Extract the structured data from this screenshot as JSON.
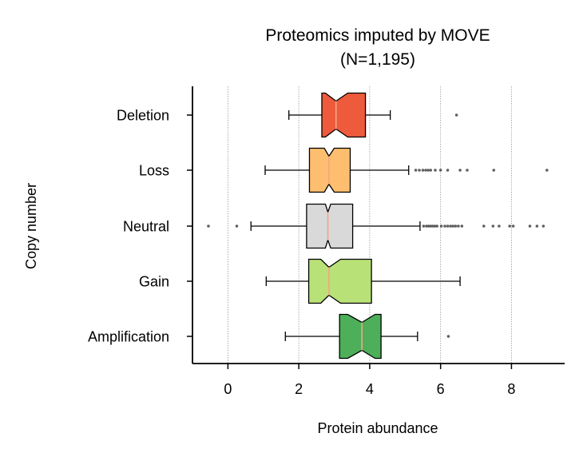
{
  "chart_data": {
    "type": "boxplot",
    "orientation": "horizontal",
    "notched": true,
    "title": [
      "Proteomics imputed by MOVE",
      "(N=1,195)"
    ],
    "xlabel": "Protein abundance",
    "ylabel": "Copy number",
    "xlim": [
      -1.0,
      9.5
    ],
    "xticks": [
      0,
      2,
      4,
      6,
      8
    ],
    "grid": "vertical dotted",
    "categories": [
      "Deletion",
      "Loss",
      "Neutral",
      "Gain",
      "Amplification"
    ],
    "boxes": [
      {
        "category": "Deletion",
        "color": "#EE5A3C",
        "whisker_low": 1.72,
        "q1": 2.65,
        "median": 3.05,
        "q3": 3.88,
        "whisker_high": 4.58,
        "notch_low": 2.75,
        "notch_high": 3.38,
        "outliers": [
          6.45
        ]
      },
      {
        "category": "Loss",
        "color": "#FDBF6F",
        "whisker_low": 1.05,
        "q1": 2.3,
        "median": 2.85,
        "q3": 3.45,
        "whisker_high": 5.1,
        "notch_low": 2.72,
        "notch_high": 3.0,
        "outliers": [
          5.3,
          5.4,
          5.5,
          5.58,
          5.65,
          5.72,
          5.85,
          6.0,
          6.2,
          6.55,
          6.75,
          7.5,
          9.0
        ]
      },
      {
        "category": "Neutral",
        "color": "#D9D9D9",
        "whisker_low": 0.65,
        "q1": 2.22,
        "median": 2.82,
        "q3": 3.52,
        "whisker_high": 5.42,
        "notch_low": 2.75,
        "notch_high": 2.9,
        "outliers": [
          -0.55,
          0.25,
          5.52,
          5.6,
          5.66,
          5.72,
          5.78,
          5.84,
          5.9,
          6.02,
          6.12,
          6.2,
          6.28,
          6.35,
          6.42,
          6.5,
          6.6,
          7.22,
          7.48,
          7.65,
          7.95,
          8.05,
          8.52,
          8.72,
          8.9
        ]
      },
      {
        "category": "Gain",
        "color": "#B8E178",
        "whisker_low": 1.08,
        "q1": 2.28,
        "median": 2.85,
        "q3": 4.05,
        "whisker_high": 6.55,
        "notch_low": 2.62,
        "notch_high": 3.18,
        "outliers": []
      },
      {
        "category": "Amplification",
        "color": "#4DAF5A",
        "whisker_low": 1.62,
        "q1": 3.15,
        "median": 3.78,
        "q3": 4.32,
        "whisker_high": 5.35,
        "notch_low": 3.38,
        "notch_high": 4.15,
        "outliers": [
          6.22
        ]
      }
    ]
  }
}
